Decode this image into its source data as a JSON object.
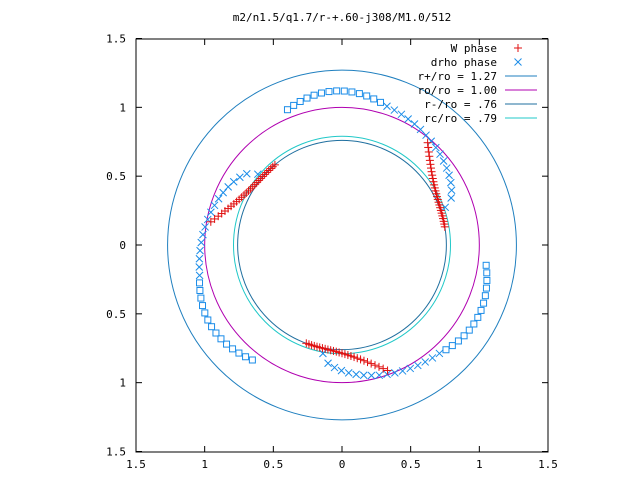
{
  "chart_data": {
    "type": "scatter",
    "title": "m2/n1.5/q1.7/r-+.60-j308/M1.0/512",
    "xlabel": "",
    "ylabel": "",
    "xlim": [
      -1.5,
      1.5
    ],
    "ylim": [
      -1.5,
      1.5
    ],
    "x_tick_values": [
      -1.5,
      -1,
      -0.5,
      0,
      0.5,
      1,
      1.5
    ],
    "x_tick_labels": [
      "1.5",
      "1",
      "0.5",
      "0",
      "0.5",
      "1",
      "1.5"
    ],
    "y_tick_values": [
      -1.5,
      -1,
      -0.5,
      0,
      0.5,
      1,
      1.5
    ],
    "y_tick_labels": [
      "1.5",
      "1",
      "0.5",
      "0",
      "0.5",
      "1",
      "1.5"
    ],
    "grid": false,
    "legend_position": "top-right",
    "circles": [
      {
        "label": "r+/ro = 1.27",
        "radius": 1.27,
        "color": "#1f7fbf"
      },
      {
        "label": "ro/ro = 1.00",
        "radius": 1.0,
        "color": "#b000b0"
      },
      {
        "label": "r-/ro = .76",
        "radius": 0.76,
        "color": "#1f6f9f"
      },
      {
        "label": "rc/ro = .79",
        "radius": 0.79,
        "color": "#20c8c8"
      }
    ],
    "series": [
      {
        "name": "W phase",
        "marker": "plus",
        "color": "#e01010",
        "branch_start_angle_deg": [
          10,
          130,
          250
        ],
        "x": [],
        "y": []
      },
      {
        "name": "drho phase",
        "marker": "x-and-square",
        "color": "#1a8ce8",
        "branch_start_angle_deg": [
          10,
          130,
          250
        ],
        "x": [],
        "y": []
      }
    ]
  }
}
